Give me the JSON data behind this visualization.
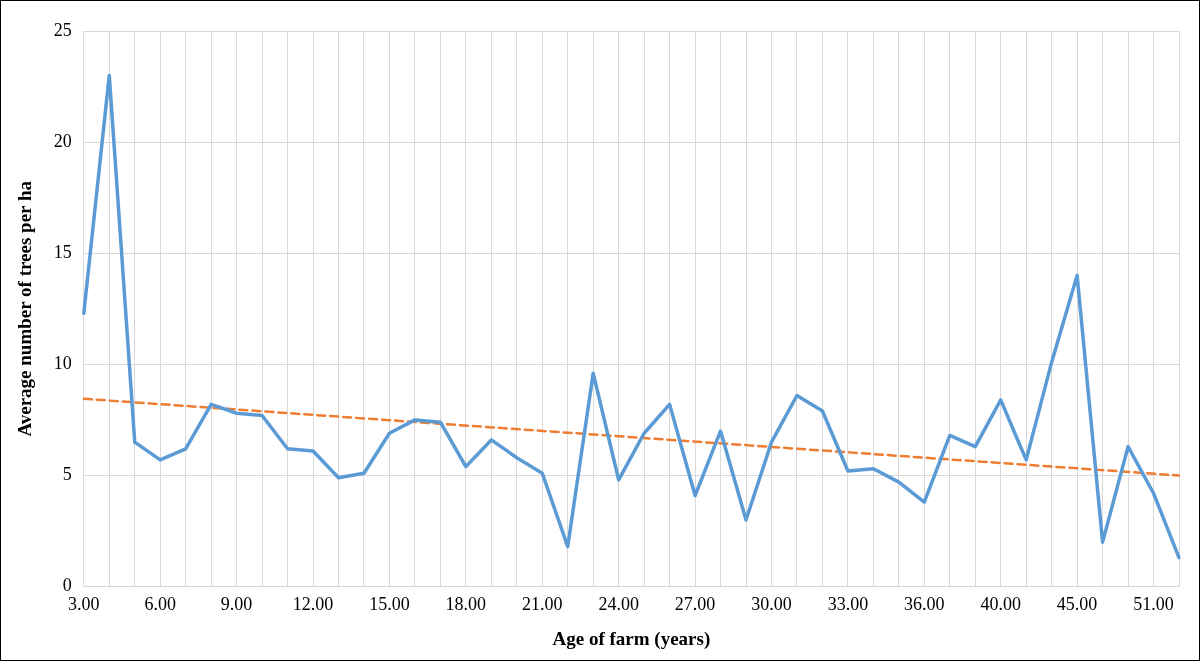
{
  "chart_data": {
    "type": "line",
    "xlabel": "Age of farm (years)",
    "ylabel": "Average number of trees per ha",
    "categories": [
      "3.00",
      null,
      null,
      "6.00",
      null,
      null,
      "9.00",
      null,
      null,
      "12.00",
      null,
      null,
      "15.00",
      null,
      null,
      "18.00",
      null,
      null,
      "21.00",
      null,
      null,
      "24.00",
      null,
      null,
      "27.00",
      null,
      null,
      "30.00",
      null,
      null,
      "33.00",
      null,
      null,
      "36.00",
      null,
      null,
      "40.00",
      null,
      null,
      "45.00",
      null,
      null,
      "51.00",
      null
    ],
    "series": [
      {
        "color": "#5b9bd5",
        "values": [
          12.3,
          23.0,
          6.5,
          5.7,
          6.2,
          8.2,
          7.8,
          7.7,
          6.2,
          6.1,
          4.9,
          5.1,
          6.9,
          7.5,
          7.4,
          5.4,
          6.6,
          5.8,
          5.1,
          1.8,
          9.6,
          4.8,
          6.9,
          8.2,
          4.1,
          7.0,
          3.0,
          6.5,
          8.6,
          7.9,
          5.2,
          5.3,
          4.7,
          3.8,
          6.8,
          6.3,
          8.4,
          5.7,
          10.1,
          14.0,
          2.0,
          6.3,
          4.2,
          1.3
        ]
      },
      {
        "type": "line",
        "line_style": "dashed",
        "color": "#ed7d31",
        "values": [
          8.45,
          null,
          null,
          null,
          null,
          null,
          null,
          null,
          null,
          null,
          null,
          null,
          null,
          null,
          null,
          null,
          null,
          null,
          null,
          null,
          null,
          null,
          null,
          null,
          null,
          null,
          null,
          null,
          null,
          null,
          null,
          null,
          null,
          null,
          null,
          null,
          null,
          null,
          null,
          null,
          null,
          null,
          null,
          5.0
        ]
      }
    ],
    "ylim": [
      0,
      25
    ],
    "yticks": [
      0,
      5,
      10,
      15,
      20,
      25
    ],
    "grid": true,
    "legend": false,
    "marker": "none"
  }
}
